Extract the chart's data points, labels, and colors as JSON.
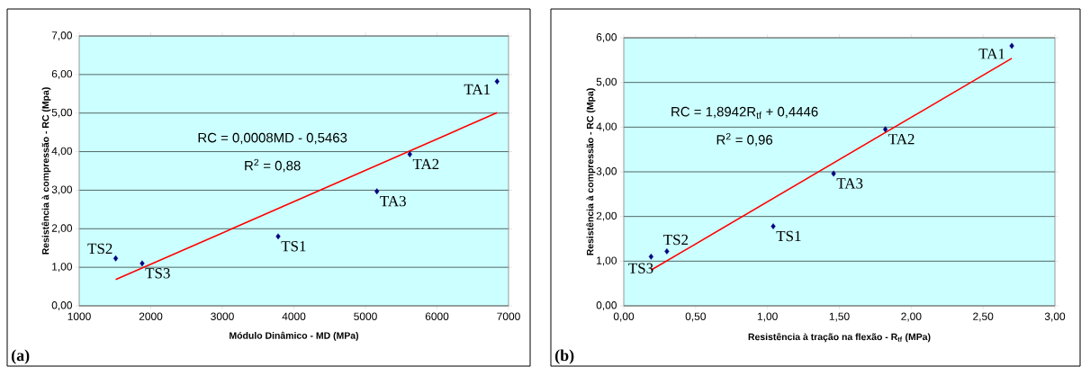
{
  "chart_data": [
    {
      "type": "scatter",
      "xlabel": "Módulo Dinâmico - MD (MPa)",
      "ylabel": "Resistência à compressão - RC (Mpa)",
      "xlim": [
        1000,
        7000
      ],
      "xticks": [
        1000,
        2000,
        3000,
        4000,
        5000,
        6000,
        7000
      ],
      "ylim": [
        0,
        7
      ],
      "yticks": [
        {
          "value": 0,
          "label": "0,00"
        },
        {
          "value": 1,
          "label": "1,00"
        },
        {
          "value": 2,
          "label": "2,00"
        },
        {
          "value": 3,
          "label": "3,00"
        },
        {
          "value": 4,
          "label": "4,00"
        },
        {
          "value": 5,
          "label": "5,00"
        },
        {
          "value": 6,
          "label": "6,00"
        },
        {
          "value": 7,
          "label": "7,00"
        }
      ],
      "grid": "y",
      "marker": "diamond",
      "series": [
        {
          "color": "#000080",
          "x": [
            1510,
            1880,
            3780,
            5160,
            5620,
            6840
          ],
          "values": [
            1.23,
            1.1,
            1.8,
            2.97,
            3.93,
            5.82
          ]
        },
        {
          "type": "line",
          "color": "#ff0000",
          "marker": "none",
          "x": [
            1510,
            6840
          ],
          "values": [
            0.68,
            5.01
          ]
        }
      ],
      "annotations": [
        {
          "text": "TS2",
          "x": 1510,
          "y": 1.23
        },
        {
          "text": "TS3",
          "x": 1880,
          "y": 1.1
        },
        {
          "text": "TS1",
          "x": 3780,
          "y": 1.8
        },
        {
          "text": "TA3",
          "x": 5160,
          "y": 2.97
        },
        {
          "text": "TA2",
          "x": 5620,
          "y": 3.93
        },
        {
          "text": "TA1",
          "x": 6840,
          "y": 5.82
        },
        "RC = 0,0008MD - 0,5463",
        "R$^{2}$ = 0,88",
        "(a)"
      ]
    },
    {
      "type": "scatter",
      "xlabel": "Resistência à tração na flexão - R$_{tf}$ (MPa)",
      "ylabel": "Resistência à compressão - RC (Mpa)",
      "xlim": [
        0,
        3
      ],
      "xticks": [
        {
          "value": 0,
          "label": "0,00"
        },
        {
          "value": 0.5,
          "label": "0,50"
        },
        {
          "value": 1,
          "label": "1,00"
        },
        {
          "value": 1.5,
          "label": "1,50"
        },
        {
          "value": 2,
          "label": "2,00"
        },
        {
          "value": 2.5,
          "label": "2,50"
        },
        {
          "value": 3,
          "label": "3,00"
        }
      ],
      "ylim": [
        0,
        6
      ],
      "yticks": [
        {
          "value": 0,
          "label": "0,00"
        },
        {
          "value": 1,
          "label": "1,00"
        },
        {
          "value": 2,
          "label": "2,00"
        },
        {
          "value": 3,
          "label": "3,00"
        },
        {
          "value": 4,
          "label": "4,00"
        },
        {
          "value": 5,
          "label": "5,00"
        },
        {
          "value": 6,
          "label": "6,00"
        }
      ],
      "grid": "y",
      "marker": "diamond",
      "series": [
        {
          "color": "#000080",
          "x": [
            0.19,
            0.3,
            1.04,
            1.46,
            1.82,
            2.7
          ],
          "values": [
            1.1,
            1.22,
            1.78,
            2.96,
            3.95,
            5.82
          ]
        },
        {
          "type": "line",
          "color": "#ff0000",
          "marker": "none",
          "x": [
            0.19,
            2.7
          ],
          "values": [
            0.8,
            5.54
          ]
        }
      ],
      "annotations": [
        {
          "text": "TS3",
          "x": 0.19,
          "y": 1.1
        },
        {
          "text": "TS2",
          "x": 0.3,
          "y": 1.22
        },
        {
          "text": "TS1",
          "x": 1.04,
          "y": 1.78
        },
        {
          "text": "TA3",
          "x": 1.46,
          "y": 2.96
        },
        {
          "text": "TA2",
          "x": 1.82,
          "y": 3.95
        },
        {
          "text": "TA1",
          "x": 2.7,
          "y": 5.82
        },
        "RC = 1,8942R$_{tf}$ + 0,4446",
        "R$^{2}$ = 0,96",
        "(b)"
      ]
    }
  ]
}
